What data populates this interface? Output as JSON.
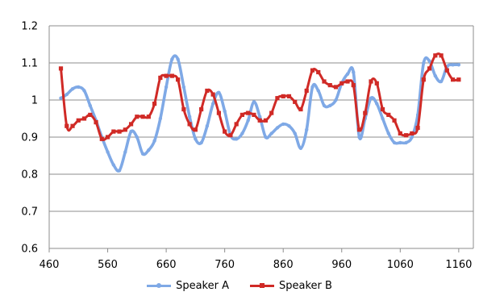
{
  "chart_data": {
    "type": "line",
    "title": "",
    "xlabel": "",
    "ylabel": "",
    "xlim": [
      460,
      1185
    ],
    "ylim": [
      0.6,
      1.2
    ],
    "x_ticks": [
      460,
      560,
      660,
      760,
      860,
      960,
      1060,
      1160
    ],
    "y_ticks": [
      0.6,
      0.7,
      0.8,
      0.9,
      1,
      1.1,
      1.2
    ],
    "y_tick_labels": [
      "0.6",
      "0.7",
      "0.8",
      "0.9",
      "1",
      "1.1",
      "1.2"
    ],
    "grid": "horizontal",
    "legend_position": "bottom",
    "series": [
      {
        "name": "Speaker A",
        "color": "#7fa9e6",
        "marker": "circle",
        "x": [
          480,
          490,
          500,
          510,
          520,
          530,
          540,
          550,
          560,
          570,
          580,
          590,
          600,
          610,
          620,
          630,
          640,
          650,
          660,
          670,
          680,
          690,
          700,
          710,
          720,
          730,
          740,
          750,
          760,
          770,
          780,
          790,
          800,
          810,
          820,
          830,
          840,
          850,
          860,
          870,
          880,
          890,
          900,
          910,
          920,
          930,
          940,
          950,
          960,
          970,
          980,
          990,
          1000,
          1010,
          1020,
          1030,
          1040,
          1050,
          1060,
          1070,
          1080,
          1090,
          1100,
          1110,
          1120,
          1130,
          1140,
          1150,
          1160
        ],
        "values": [
          1.005,
          1.015,
          1.03,
          1.035,
          1.025,
          0.985,
          0.945,
          0.9,
          0.86,
          0.825,
          0.81,
          0.86,
          0.915,
          0.9,
          0.855,
          0.865,
          0.89,
          0.95,
          1.035,
          1.11,
          1.11,
          1.035,
          0.955,
          0.895,
          0.885,
          0.93,
          0.99,
          1.02,
          0.97,
          0.905,
          0.895,
          0.91,
          0.945,
          0.995,
          0.955,
          0.9,
          0.91,
          0.925,
          0.935,
          0.93,
          0.91,
          0.87,
          0.92,
          1.035,
          1.025,
          0.985,
          0.985,
          1.0,
          1.045,
          1.07,
          1.075,
          0.9,
          0.95,
          1.005,
          0.99,
          0.95,
          0.91,
          0.885,
          0.885,
          0.885,
          0.9,
          0.96,
          1.1,
          1.105,
          1.065,
          1.05,
          1.09,
          1.095,
          1.095
        ]
      },
      {
        "name": "Speaker B",
        "color": "#d02a26",
        "marker": "square",
        "x": [
          480,
          490,
          500,
          510,
          520,
          530,
          540,
          550,
          560,
          570,
          580,
          590,
          600,
          610,
          620,
          630,
          640,
          650,
          660,
          670,
          680,
          690,
          700,
          710,
          720,
          730,
          740,
          750,
          760,
          770,
          780,
          790,
          800,
          810,
          820,
          830,
          840,
          850,
          860,
          870,
          880,
          890,
          900,
          910,
          920,
          930,
          940,
          950,
          960,
          970,
          980,
          990,
          1000,
          1010,
          1020,
          1030,
          1040,
          1050,
          1060,
          1070,
          1080,
          1090,
          1100,
          1110,
          1120,
          1130,
          1140,
          1150,
          1160
        ],
        "values": [
          1.085,
          0.93,
          0.93,
          0.945,
          0.95,
          0.96,
          0.94,
          0.895,
          0.9,
          0.915,
          0.915,
          0.92,
          0.935,
          0.955,
          0.955,
          0.955,
          0.99,
          1.06,
          1.065,
          1.065,
          1.055,
          0.975,
          0.935,
          0.92,
          0.975,
          1.025,
          1.015,
          0.965,
          0.915,
          0.905,
          0.935,
          0.96,
          0.965,
          0.96,
          0.945,
          0.945,
          0.965,
          1.005,
          1.01,
          1.01,
          0.995,
          0.975,
          1.025,
          1.08,
          1.075,
          1.05,
          1.04,
          1.035,
          1.045,
          1.05,
          1.04,
          0.92,
          0.965,
          1.05,
          1.045,
          0.975,
          0.96,
          0.945,
          0.91,
          0.905,
          0.91,
          0.925,
          1.055,
          1.085,
          1.12,
          1.12,
          1.08,
          1.055,
          1.055
        ]
      }
    ]
  }
}
